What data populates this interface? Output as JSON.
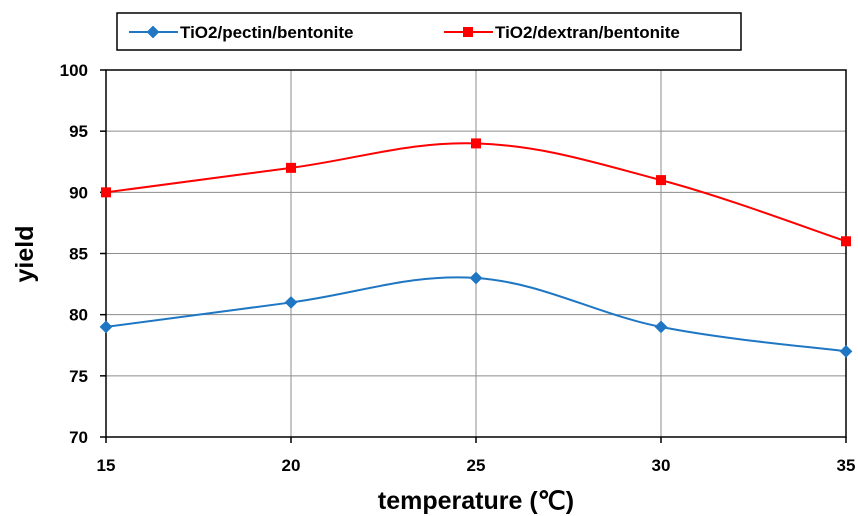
{
  "chart_data": {
    "type": "line",
    "x": [
      15,
      20,
      25,
      30,
      35
    ],
    "xlabel": "temperature (℃)",
    "ylabel": "yield",
    "xlim": [
      15,
      35
    ],
    "ylim": [
      70,
      100
    ],
    "x_ticks": [
      "15",
      "20",
      "25",
      "30",
      "35"
    ],
    "y_ticks": [
      "70",
      "75",
      "80",
      "85",
      "90",
      "95",
      "100"
    ],
    "grid": true,
    "smooth": true,
    "legend_position": "top",
    "series": [
      {
        "name": "TiO2/pectin/bentonite",
        "values": [
          79,
          81,
          83,
          79,
          77
        ],
        "color": "#1F77C4",
        "marker": "diamond"
      },
      {
        "name": "TiO2/dextran/bentonite",
        "values": [
          90,
          92,
          94,
          91,
          86
        ],
        "color": "#FF0000",
        "marker": "square"
      }
    ]
  }
}
